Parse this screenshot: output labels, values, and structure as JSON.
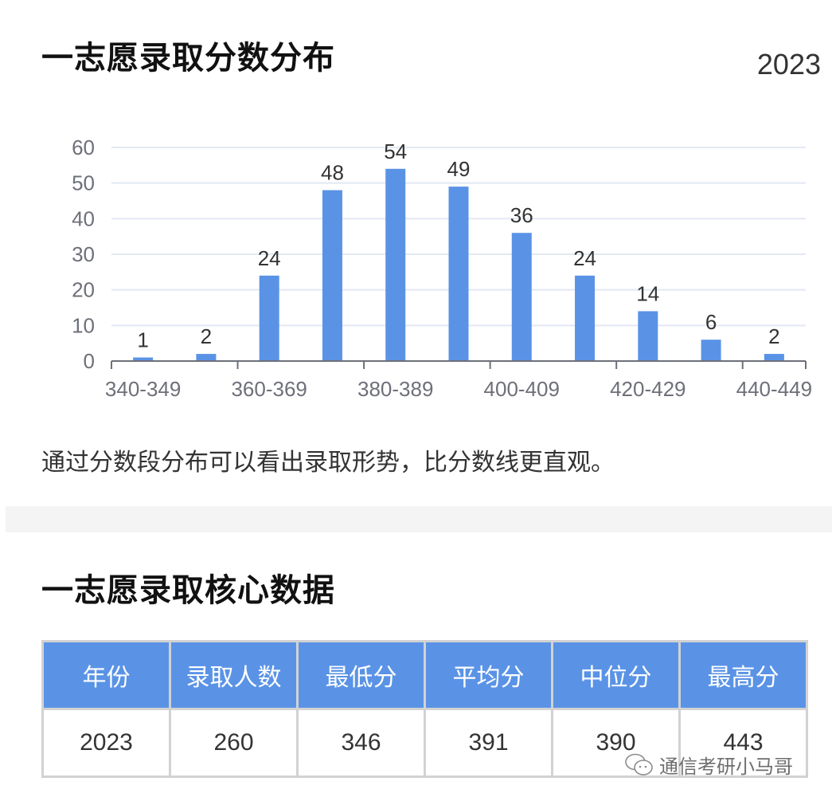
{
  "section1": {
    "title": "一志愿录取分数分布",
    "year": "2023",
    "caption": "通过分数段分布可以看出录取形势，比分数线更直观。"
  },
  "section2": {
    "title": "一志愿录取核心数据",
    "table": {
      "headers": [
        "年份",
        "录取人数",
        "最低分",
        "平均分",
        "中位分",
        "最高分"
      ],
      "rows": [
        [
          "2023",
          "260",
          "346",
          "391",
          "390",
          "443"
        ]
      ]
    }
  },
  "watermark": {
    "text": "通信考研小马哥",
    "icon": "wechat-icon"
  },
  "colors": {
    "bar": "#5a93e6",
    "header_bg": "#5a93e6",
    "grid": "#e3e8f3",
    "axis": "#6e7079",
    "band": "#f4f4f4"
  },
  "chart_data": {
    "type": "bar",
    "title": "一志愿录取分数分布",
    "subtitle": "2023",
    "categories": [
      "340-349",
      "350-359",
      "360-369",
      "370-379",
      "380-389",
      "390-399",
      "400-409",
      "410-419",
      "420-429",
      "430-439",
      "440-449"
    ],
    "values": [
      1,
      2,
      24,
      48,
      54,
      49,
      36,
      24,
      14,
      6,
      2
    ],
    "visible_tick_labels": [
      "340-349",
      "360-369",
      "380-389",
      "400-409",
      "420-429",
      "440-449"
    ],
    "y_ticks": [
      0,
      10,
      20,
      30,
      40,
      50,
      60
    ],
    "xlabel": "",
    "ylabel": "",
    "ylim": [
      0,
      60
    ],
    "grid": true,
    "data_labels": true,
    "legend": null
  }
}
